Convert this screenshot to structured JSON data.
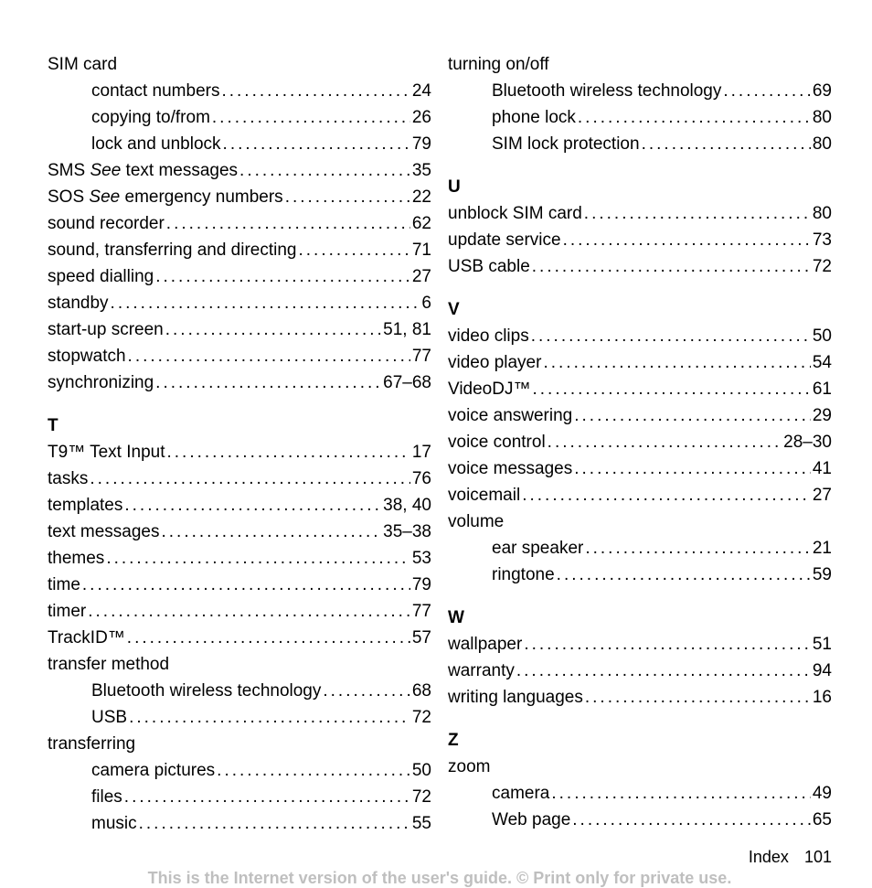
{
  "left_column": [
    {
      "type": "entry",
      "label": "SIM card",
      "page": "",
      "noleader": true,
      "nopage": true
    },
    {
      "type": "entry",
      "label": "contact numbers",
      "page": "24",
      "indent": true
    },
    {
      "type": "entry",
      "label": "copying to/from",
      "page": "26",
      "indent": true
    },
    {
      "type": "entry",
      "label": "lock and unblock",
      "page": "79",
      "indent": true
    },
    {
      "type": "entry",
      "labelParts": [
        "SMS ",
        {
          "italic": "See"
        },
        " text messages"
      ],
      "page": "35"
    },
    {
      "type": "entry",
      "labelParts": [
        "SOS ",
        {
          "italic": "See"
        },
        " emergency numbers"
      ],
      "page": "22"
    },
    {
      "type": "entry",
      "label": "sound recorder",
      "page": "62"
    },
    {
      "type": "entry",
      "label": "sound, transferring and directing",
      "page": "71"
    },
    {
      "type": "entry",
      "label": "speed dialling",
      "page": "27"
    },
    {
      "type": "entry",
      "label": "standby",
      "page": "6"
    },
    {
      "type": "entry",
      "label": "start-up screen",
      "page": "51, 81"
    },
    {
      "type": "entry",
      "label": "stopwatch",
      "page": "77"
    },
    {
      "type": "entry",
      "label": "synchronizing",
      "page": "67–68"
    },
    {
      "type": "letter",
      "text": "T"
    },
    {
      "type": "entry",
      "label": "T9™ Text Input",
      "page": "17"
    },
    {
      "type": "entry",
      "label": "tasks",
      "page": "76"
    },
    {
      "type": "entry",
      "label": "templates",
      "page": "38, 40"
    },
    {
      "type": "entry",
      "label": "text messages",
      "page": "35–38"
    },
    {
      "type": "entry",
      "label": "themes",
      "page": "53"
    },
    {
      "type": "entry",
      "label": "time",
      "page": "79"
    },
    {
      "type": "entry",
      "label": "timer",
      "page": "77"
    },
    {
      "type": "entry",
      "label": "TrackID™",
      "page": "57"
    },
    {
      "type": "entry",
      "label": "transfer method",
      "page": "",
      "nopage": true
    },
    {
      "type": "entry",
      "label": "Bluetooth wireless technology",
      "page": "68",
      "indent": true
    },
    {
      "type": "entry",
      "label": "USB",
      "page": "72",
      "indent": true
    },
    {
      "type": "entry",
      "label": "transferring",
      "page": "",
      "nopage": true
    },
    {
      "type": "entry",
      "label": "camera pictures",
      "page": "50",
      "indent": true
    },
    {
      "type": "entry",
      "label": "files",
      "page": "72",
      "indent": true
    },
    {
      "type": "entry",
      "label": "music",
      "page": "55",
      "indent": true
    }
  ],
  "right_column": [
    {
      "type": "entry",
      "label": "turning on/off",
      "page": "",
      "nopage": true
    },
    {
      "type": "entry",
      "label": "Bluetooth wireless technology",
      "page": "69",
      "indent": true
    },
    {
      "type": "entry",
      "label": "phone lock",
      "page": "80",
      "indent": true
    },
    {
      "type": "entry",
      "label": "SIM lock protection",
      "page": "80",
      "indent": true
    },
    {
      "type": "letter",
      "text": "U"
    },
    {
      "type": "entry",
      "label": "unblock SIM card",
      "page": "80"
    },
    {
      "type": "entry",
      "label": "update service",
      "page": "73"
    },
    {
      "type": "entry",
      "label": "USB cable",
      "page": "72"
    },
    {
      "type": "letter",
      "text": "V"
    },
    {
      "type": "entry",
      "label": "video clips",
      "page": "50"
    },
    {
      "type": "entry",
      "label": "video player",
      "page": "54"
    },
    {
      "type": "entry",
      "label": "VideoDJ™",
      "page": "61"
    },
    {
      "type": "entry",
      "label": "voice answering",
      "page": "29"
    },
    {
      "type": "entry",
      "label": "voice control",
      "page": "28–30"
    },
    {
      "type": "entry",
      "label": "voice messages",
      "page": "41"
    },
    {
      "type": "entry",
      "label": "voicemail",
      "page": "27"
    },
    {
      "type": "entry",
      "label": "volume",
      "page": "",
      "nopage": true
    },
    {
      "type": "entry",
      "label": "ear speaker",
      "page": "21",
      "indent": true
    },
    {
      "type": "entry",
      "label": "ringtone",
      "page": "59",
      "indent": true
    },
    {
      "type": "letter",
      "text": "W"
    },
    {
      "type": "entry",
      "label": "wallpaper",
      "page": "51"
    },
    {
      "type": "entry",
      "label": "warranty",
      "page": "94"
    },
    {
      "type": "entry",
      "label": "writing languages",
      "page": "16"
    },
    {
      "type": "letter",
      "text": "Z"
    },
    {
      "type": "entry",
      "label": "zoom",
      "page": "",
      "nopage": true
    },
    {
      "type": "entry",
      "label": "camera",
      "page": "49",
      "indent": true
    },
    {
      "type": "entry",
      "label": "Web page",
      "page": "65",
      "indent": true
    }
  ],
  "footer": {
    "label": "Index",
    "page": "101"
  },
  "disclaimer": "This is the Internet version of the user's guide. © Print only for private use."
}
